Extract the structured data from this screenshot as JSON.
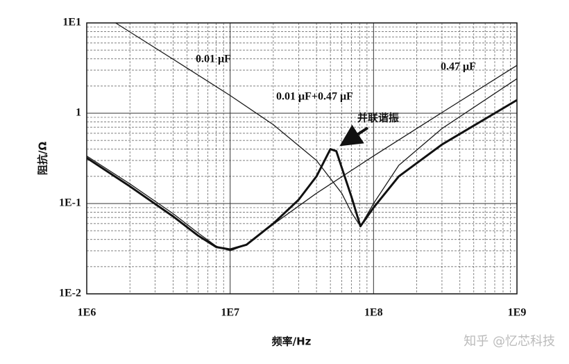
{
  "chart_data": {
    "type": "line",
    "xlabel": "频率/Hz",
    "ylabel": "阻抗/Ω",
    "xscale": "log",
    "yscale": "log",
    "grid": true,
    "minor_grid": true,
    "xlim": [
      1000000,
      1000000000
    ],
    "ylim": [
      0.01,
      10
    ],
    "xticks": [
      {
        "value": 1000000,
        "label": "1E6"
      },
      {
        "value": 10000000,
        "label": "1E7"
      },
      {
        "value": 100000000,
        "label": "1E8"
      },
      {
        "value": 1000000000,
        "label": "1E9"
      }
    ],
    "yticks": [
      {
        "value": 0.01,
        "label": "1E-2"
      },
      {
        "value": 0.1,
        "label": "1E-1"
      },
      1,
      {
        "value": 10,
        "label": "1E1"
      }
    ],
    "series": [
      {
        "name": "0.01 μF",
        "color": "#1a1a1a",
        "line_width": 1.3,
        "x": [
          1590000,
          2000000,
          5000000,
          10000000,
          20000000,
          40000000,
          60000000,
          70000000,
          81000000,
          100000000,
          150000000,
          300000000,
          1000000000
        ],
        "values": [
          10,
          7.95,
          3.17,
          1.57,
          0.747,
          0.3,
          0.13,
          0.08,
          0.056,
          0.1,
          0.265,
          0.676,
          2.41
        ]
      },
      {
        "name": "0.47 μF",
        "color": "#1a1a1a",
        "line_width": 1.3,
        "x": [
          1000000,
          2000000,
          4000000,
          6000000,
          8000000,
          10000000,
          13000000,
          20000000,
          40000000,
          100000000,
          300000000,
          1000000000
        ],
        "values": [
          0.336,
          0.165,
          0.0773,
          0.047,
          0.0337,
          0.03,
          0.035,
          0.059,
          0.13,
          0.336,
          1.017,
          3.39
        ]
      },
      {
        "name": "0.01 μF+0.47 μF",
        "color": "#111111",
        "line_width": 3,
        "x": [
          1000000,
          2000000,
          4000000,
          6000000,
          8000000,
          10000000,
          13000000,
          20000000,
          30000000,
          40000000,
          50000000,
          55000000,
          60000000,
          70000000,
          81000000,
          100000000,
          150000000,
          300000000,
          1000000000
        ],
        "values": [
          0.32,
          0.155,
          0.072,
          0.044,
          0.033,
          0.031,
          0.035,
          0.06,
          0.11,
          0.2,
          0.4,
          0.38,
          0.25,
          0.12,
          0.056,
          0.09,
          0.2,
          0.45,
          1.4
        ]
      }
    ],
    "annotations": [
      "并联谐振"
    ]
  },
  "watermark": "知乎 @忆芯科技"
}
